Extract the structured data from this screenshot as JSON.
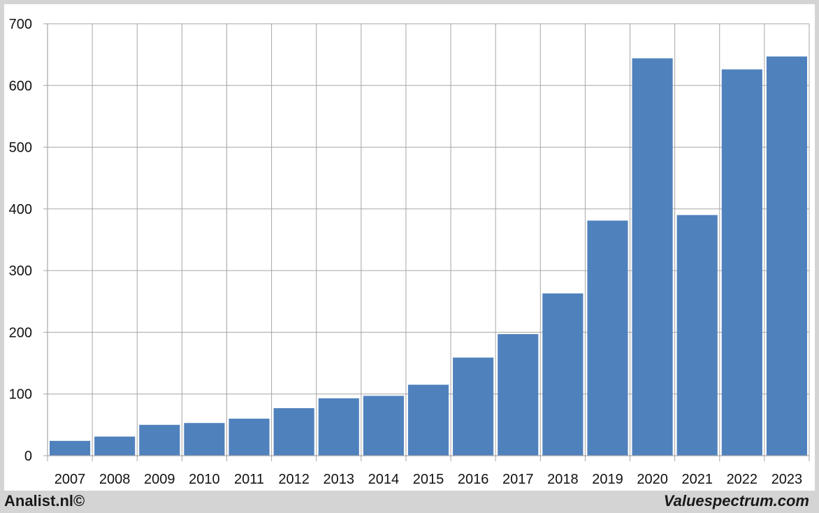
{
  "footer": {
    "left_label": "Analist.nl©",
    "right_label": "Valuespectrum.com"
  },
  "colors": {
    "bar": "#4f81bd",
    "grid": "#a6a6a6",
    "background": "#ffffff",
    "frame": "#d4d4d4"
  },
  "chart_data": {
    "type": "bar",
    "title": "",
    "xlabel": "",
    "ylabel": "",
    "categories": [
      "2007",
      "2008",
      "2009",
      "2010",
      "2011",
      "2012",
      "2013",
      "2014",
      "2015",
      "2016",
      "2017",
      "2018",
      "2019",
      "2020",
      "2021",
      "2022",
      "2023"
    ],
    "values": [
      24,
      31,
      50,
      53,
      60,
      77,
      93,
      97,
      115,
      159,
      197,
      263,
      381,
      644,
      390,
      626,
      647
    ],
    "ylim": [
      0,
      700
    ],
    "yticks": [
      0,
      100,
      200,
      300,
      400,
      500,
      600,
      700
    ],
    "grid": true,
    "legend": "none"
  }
}
